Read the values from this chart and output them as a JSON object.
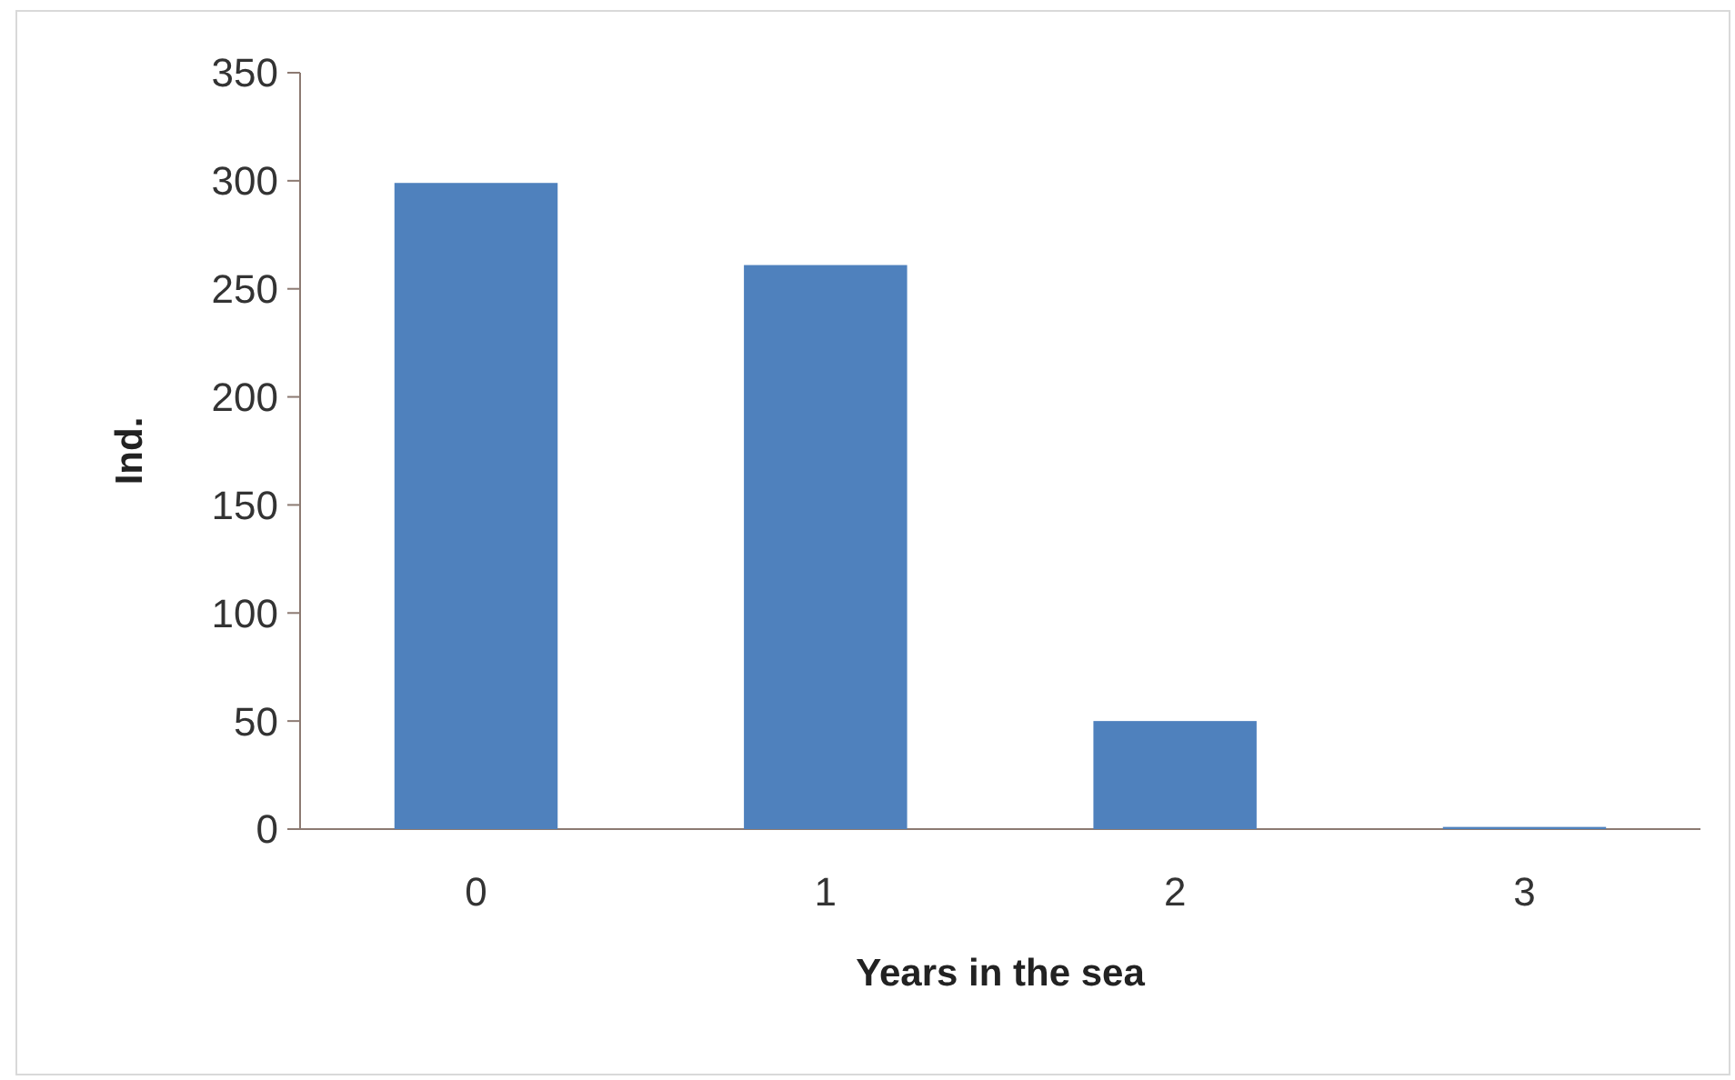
{
  "chart_data": {
    "type": "bar",
    "xlabel": "Years in the sea",
    "ylabel": "Ind.",
    "categories": [
      "0",
      "1",
      "2",
      "3"
    ],
    "values": [
      299,
      261,
      50,
      1
    ],
    "color": "#4f81bd",
    "ylim": [
      0,
      350
    ],
    "yticks": [
      0,
      50,
      100,
      150,
      200,
      250,
      300,
      350
    ],
    "grid": false
  }
}
